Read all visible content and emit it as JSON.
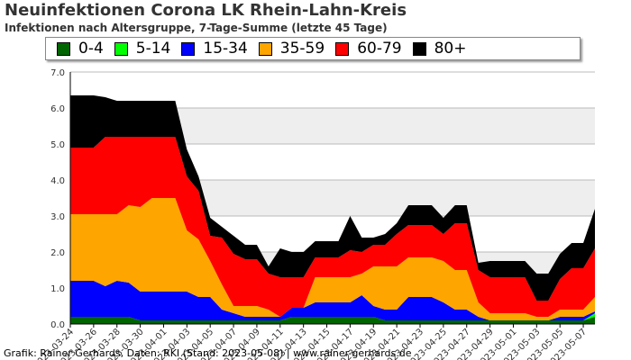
{
  "title": "Neuinfektionen Corona LK Rhein-Lahn-Kreis",
  "subtitle": "Infektionen nach Altersgruppe, 7-Tage-Summe (letzte 45 Tage)",
  "footer": "Grafik: Rainer Gerhards, Daten: RKI (Stand: 2023-05-08) | www.rainer-gerhards.de",
  "colors": {
    "band": "#eeeeee",
    "grid": "#bbbbbb",
    "axis": "#000000"
  },
  "legend": [
    {
      "label": "0-4",
      "color": "#006400"
    },
    {
      "label": "5-14",
      "color": "#00ff00"
    },
    {
      "label": "15-34",
      "color": "#0000ff"
    },
    {
      "label": "35-59",
      "color": "#ffa500"
    },
    {
      "label": "60-79",
      "color": "#ff0000"
    },
    {
      "label": "80+",
      "color": "#000000"
    }
  ],
  "chart_data": {
    "type": "area",
    "stacked": true,
    "title": "Neuinfektionen Corona LK Rhein-Lahn-Kreis",
    "subtitle": "Infektionen nach Altersgruppe, 7-Tage-Summe (letzte 45 Tage)",
    "xlabel": "",
    "ylabel": "",
    "ylim": [
      0,
      7
    ],
    "yticks": [
      "0.0",
      "1.0",
      "2.0",
      "3.0",
      "4.0",
      "5.0",
      "6.0",
      "7.0"
    ],
    "xtick_labels": [
      "2023-03-24",
      "2023-03-26",
      "2023-03-28",
      "2023-03-30",
      "2023-04-01",
      "2023-04-03",
      "2023-04-05",
      "2023-04-07",
      "2023-04-09",
      "2023-04-11",
      "2023-04-13",
      "2023-04-15",
      "2023-04-17",
      "2023-04-19",
      "2023-04-21",
      "2023-04-23",
      "2023-04-25",
      "2023-04-27",
      "2023-04-29",
      "2023-05-01",
      "2023-05-03",
      "2023-05-05",
      "2023-05-07"
    ],
    "legend_position": "top",
    "grid": true,
    "x": [
      "2023-03-24",
      "2023-03-25",
      "2023-03-26",
      "2023-03-27",
      "2023-03-28",
      "2023-03-29",
      "2023-03-30",
      "2023-03-31",
      "2023-04-01",
      "2023-04-02",
      "2023-04-03",
      "2023-04-04",
      "2023-04-05",
      "2023-04-06",
      "2023-04-07",
      "2023-04-08",
      "2023-04-09",
      "2023-04-10",
      "2023-04-11",
      "2023-04-12",
      "2023-04-13",
      "2023-04-14",
      "2023-04-15",
      "2023-04-16",
      "2023-04-17",
      "2023-04-18",
      "2023-04-19",
      "2023-04-20",
      "2023-04-21",
      "2023-04-22",
      "2023-04-23",
      "2023-04-24",
      "2023-04-25",
      "2023-04-26",
      "2023-04-27",
      "2023-04-28",
      "2023-04-29",
      "2023-04-30",
      "2023-05-01",
      "2023-05-02",
      "2023-05-03",
      "2023-05-04",
      "2023-05-05",
      "2023-05-06",
      "2023-05-07",
      "2023-05-08"
    ],
    "series": [
      {
        "name": "0-4",
        "color": "#006400",
        "values": [
          0.2,
          0.2,
          0.2,
          0.2,
          0.2,
          0.2,
          0.1,
          0.1,
          0.1,
          0.1,
          0.1,
          0.1,
          0.1,
          0.1,
          0.1,
          0.1,
          0.1,
          0.1,
          0.1,
          0.2,
          0.2,
          0.2,
          0.2,
          0.2,
          0.2,
          0.2,
          0.2,
          0.1,
          0.1,
          0.1,
          0.1,
          0.1,
          0.1,
          0.1,
          0.1,
          0.1,
          0.1,
          0.1,
          0.1,
          0.1,
          0.1,
          0.1,
          0.1,
          0.1,
          0.1,
          0.2
        ]
      },
      {
        "name": "5-14",
        "color": "#00ff00",
        "values": [
          0,
          0,
          0,
          0,
          0,
          0,
          0,
          0,
          0,
          0,
          0,
          0,
          0,
          0,
          0,
          0,
          0,
          0,
          0,
          0,
          0,
          0,
          0,
          0,
          0,
          0,
          0,
          0,
          0,
          0,
          0,
          0,
          0,
          0,
          0,
          0,
          0,
          0,
          0,
          0,
          0,
          0,
          0,
          0,
          0,
          0.1
        ]
      },
      {
        "name": "15-34",
        "color": "#0000ff",
        "values": [
          1.0,
          1.0,
          1.0,
          0.85,
          1.0,
          0.95,
          0.8,
          0.8,
          0.8,
          0.8,
          0.8,
          0.65,
          0.65,
          0.3,
          0.2,
          0.1,
          0.1,
          0.1,
          0.1,
          0.25,
          0.25,
          0.4,
          0.4,
          0.4,
          0.4,
          0.6,
          0.3,
          0.3,
          0.3,
          0.65,
          0.65,
          0.65,
          0.5,
          0.3,
          0.3,
          0.1,
          0,
          0,
          0,
          0,
          0,
          0,
          0.1,
          0.1,
          0.1,
          0.05
        ]
      },
      {
        "name": "35-59",
        "color": "#ffa500",
        "values": [
          1.85,
          1.85,
          1.85,
          2.0,
          1.85,
          2.15,
          2.35,
          2.6,
          2.6,
          2.6,
          1.7,
          1.6,
          1.0,
          0.7,
          0.2,
          0.3,
          0.3,
          0.2,
          0,
          0,
          0,
          0.7,
          0.7,
          0.7,
          0.7,
          0.6,
          1.1,
          1.2,
          1.2,
          1.1,
          1.1,
          1.1,
          1.15,
          1.1,
          1.1,
          0.4,
          0.2,
          0.2,
          0.2,
          0.2,
          0.1,
          0.1,
          0.2,
          0.2,
          0.2,
          0.4
        ]
      },
      {
        "name": "60-79",
        "color": "#ff0000",
        "values": [
          1.85,
          1.85,
          1.85,
          2.15,
          2.15,
          1.9,
          1.95,
          1.7,
          1.7,
          1.7,
          1.5,
          1.35,
          0.7,
          1.3,
          1.45,
          1.3,
          1.3,
          1.0,
          1.1,
          0.85,
          0.85,
          0.55,
          0.55,
          0.55,
          0.75,
          0.6,
          0.6,
          0.6,
          0.9,
          0.9,
          0.9,
          0.9,
          0.75,
          1.3,
          1.3,
          0.9,
          1.0,
          1.0,
          1.0,
          1.0,
          0.45,
          0.45,
          0.85,
          1.15,
          1.15,
          1.35
        ]
      },
      {
        "name": "80+",
        "color": "#000000",
        "values": [
          1.45,
          1.45,
          1.45,
          1.1,
          1.0,
          1.0,
          1.0,
          1.0,
          1.0,
          1.0,
          0.75,
          0.4,
          0.5,
          0.3,
          0.5,
          0.4,
          0.4,
          0.2,
          0.8,
          0.7,
          0.7,
          0.45,
          0.45,
          0.45,
          0.95,
          0.4,
          0.2,
          0.3,
          0.3,
          0.55,
          0.55,
          0.55,
          0.45,
          0.5,
          0.5,
          0.2,
          0.45,
          0.45,
          0.45,
          0.45,
          0.75,
          0.75,
          0.7,
          0.7,
          0.7,
          1.1
        ]
      }
    ]
  }
}
